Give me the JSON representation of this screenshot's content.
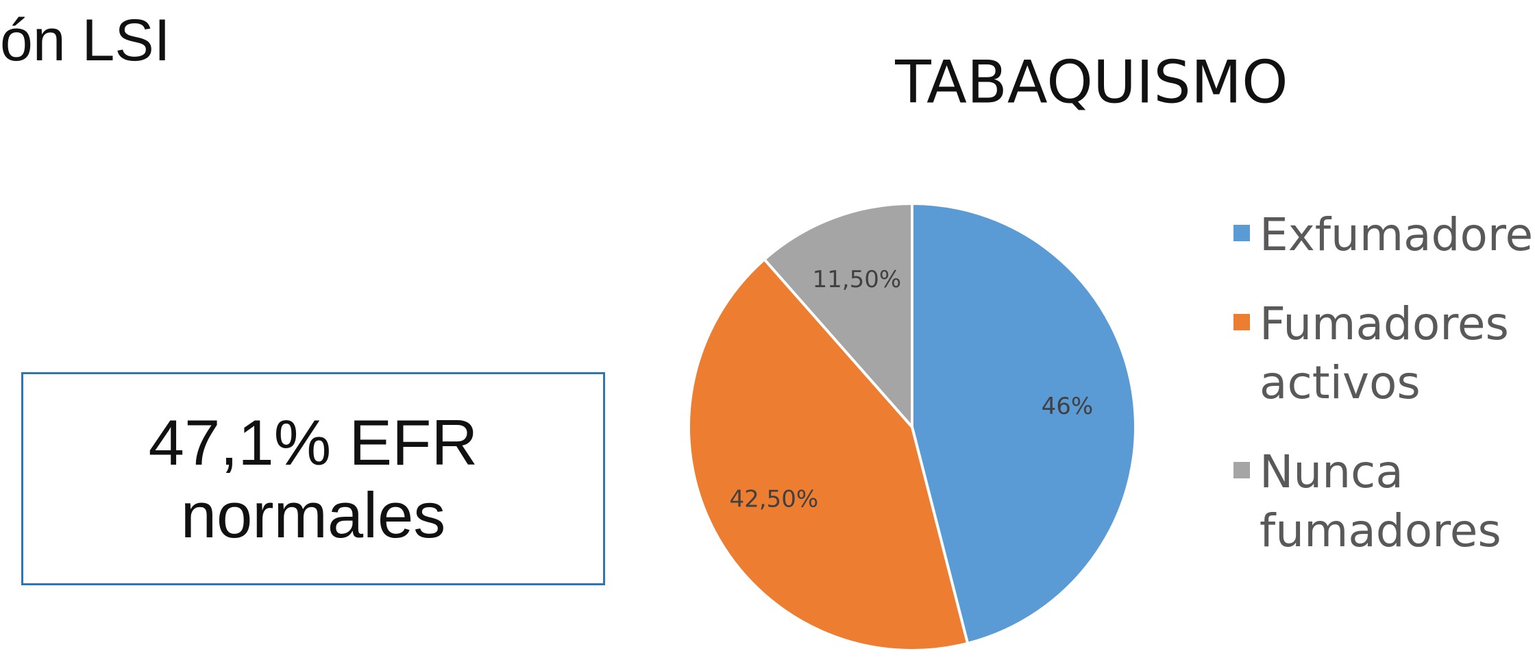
{
  "heading": "ón LSI",
  "callout": "47,1% EFR normales",
  "chart_data": {
    "type": "pie",
    "title": "TABAQUISMO",
    "categories": [
      "Exfumadores",
      "Fumadores activos",
      "Nunca fumadores"
    ],
    "values": [
      46,
      42.5,
      11.5
    ],
    "value_labels": [
      "46%",
      "42,50%",
      "11,50%"
    ],
    "colors": [
      "#5b9bd5",
      "#ed7d31",
      "#a5a5a5"
    ]
  }
}
